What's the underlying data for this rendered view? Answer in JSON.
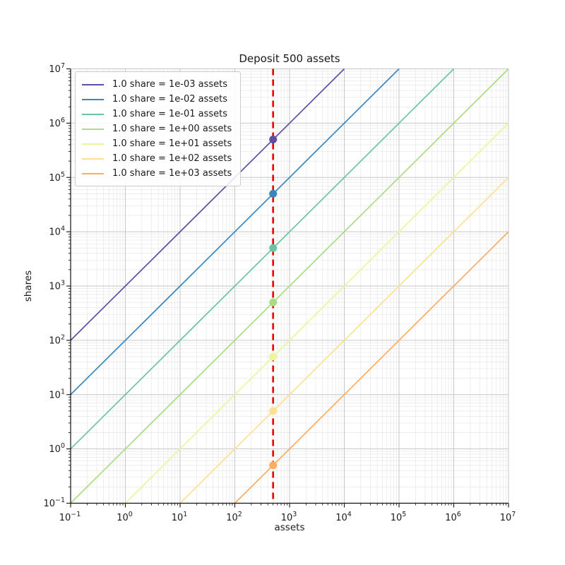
{
  "chart_data": {
    "type": "line",
    "title": "Deposit 500 assets",
    "xlabel": "assets",
    "ylabel": "shares",
    "xscale": "log",
    "yscale": "log",
    "xlim": [
      0.1,
      10000000
    ],
    "ylim": [
      0.1,
      10000000
    ],
    "x_tick_exponents": [
      -1,
      0,
      1,
      2,
      3,
      4,
      5,
      6,
      7
    ],
    "y_tick_exponents": [
      -1,
      0,
      1,
      2,
      3,
      4,
      5,
      6,
      7
    ],
    "grid": {
      "major": true,
      "minor": true,
      "major_color": "#c6c6c6",
      "minor_color": "#e7e7e7"
    },
    "legend_position": "upper-left",
    "deposit_line": {
      "assets": 500,
      "color": "#ee0000",
      "style": "dashed",
      "orientation": "vertical"
    },
    "series": [
      {
        "label": "1.0 share = 1e-03 assets",
        "assets_per_share": 0.001,
        "color": "#5e4fa2",
        "point": {
          "assets": 500,
          "shares": 500000
        }
      },
      {
        "label": "1.0 share = 1e-02 assets",
        "assets_per_share": 0.01,
        "color": "#3a87bd",
        "point": {
          "assets": 500,
          "shares": 50000
        }
      },
      {
        "label": "1.0 share = 1e-01 assets",
        "assets_per_share": 0.1,
        "color": "#69c5a4",
        "point": {
          "assets": 500,
          "shares": 5000
        }
      },
      {
        "label": "1.0 share = 1e+00 assets",
        "assets_per_share": 1,
        "color": "#a9dc83",
        "point": {
          "assets": 500,
          "shares": 500
        }
      },
      {
        "label": "1.0 share = 1e+01 assets",
        "assets_per_share": 10,
        "color": "#ebf69c",
        "point": {
          "assets": 500,
          "shares": 50
        }
      },
      {
        "label": "1.0 share = 1e+02 assets",
        "assets_per_share": 100,
        "color": "#fee190",
        "point": {
          "assets": 500,
          "shares": 5
        }
      },
      {
        "label": "1.0 share = 1e+03 assets",
        "assets_per_share": 1000,
        "color": "#fcad60",
        "point": {
          "assets": 500,
          "shares": 0.5
        }
      }
    ]
  }
}
